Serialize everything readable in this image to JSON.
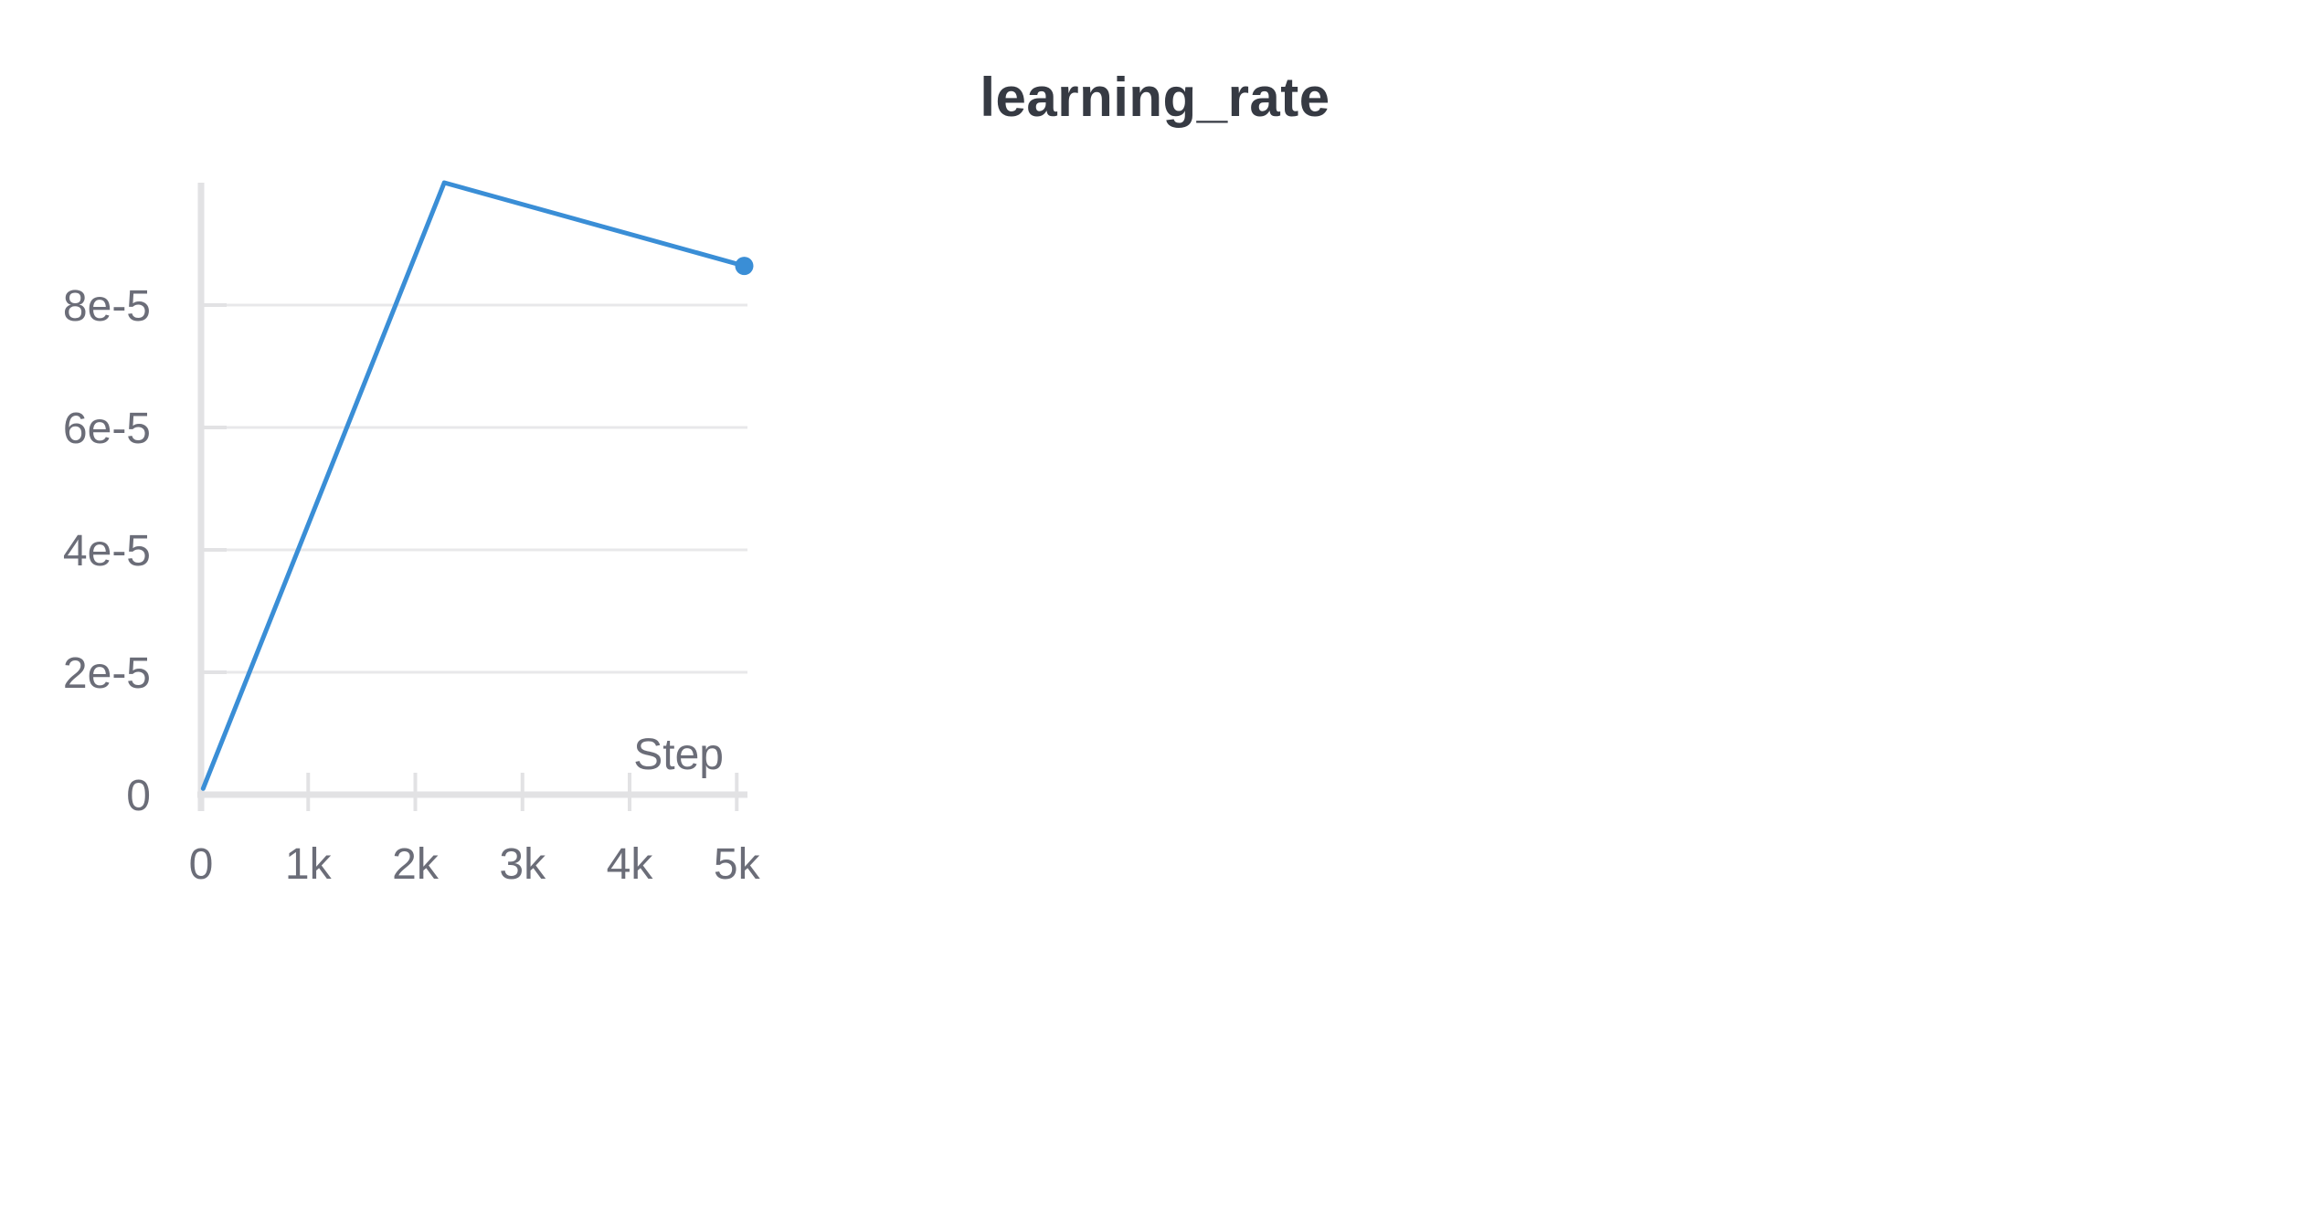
{
  "chart_data": {
    "type": "line",
    "title": "learning_rate",
    "xlabel": "Step",
    "ylabel": "",
    "xlim": [
      0,
      5100
    ],
    "ylim": [
      0,
      0.0001
    ],
    "x_ticks": [
      0,
      1000,
      2000,
      3000,
      4000,
      5000
    ],
    "x_tick_labels": [
      "0",
      "1k",
      "2k",
      "3k",
      "4k",
      "5k"
    ],
    "y_ticks": [
      0,
      2e-05,
      4e-05,
      6e-05,
      8e-05
    ],
    "y_tick_labels": [
      "0",
      "2e-5",
      "4e-5",
      "6e-5",
      "8e-5"
    ],
    "grid": "horizontal",
    "series": [
      {
        "color": "#3a8ed6",
        "x": [
          20,
          2270,
          5070
        ],
        "y": [
          1e-06,
          0.0001,
          8.64e-05
        ],
        "end_marker": true
      }
    ]
  }
}
